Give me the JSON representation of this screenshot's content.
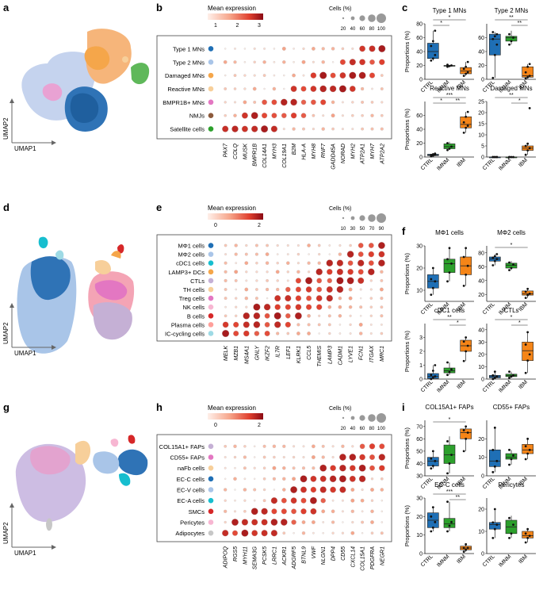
{
  "panel_letters": {
    "a": "a",
    "b": "b",
    "c": "c",
    "d": "d",
    "e": "e",
    "f": "f",
    "g": "g",
    "h": "h",
    "i": "i"
  },
  "umap": {
    "xlabel": "UMAP1",
    "ylabel": "UMAP2"
  },
  "dotplots": [
    {
      "id": "b",
      "legend_title": "Mean expression",
      "legend_ticks": [
        "1",
        "2",
        "3"
      ],
      "size_title": "Cells (%)",
      "size_ticks": [
        "20",
        "40",
        "60",
        "80",
        "100"
      ],
      "rows": [
        "Type 1 MNs",
        "Type 2 MNs",
        "Damaged MNs",
        "Reactive MNs",
        "BMPR1B+ MNs",
        "NMJs",
        "Satellite cells"
      ],
      "row_colors": [
        "#1f6fb5",
        "#a9c5e8",
        "#f5a64a",
        "#f7cf9a",
        "#e377c2",
        "#8c5a3c",
        "#2ca02c"
      ],
      "genes": [
        "PAX7",
        "COLQ",
        "MUSK",
        "BMPR1B",
        "COL14A1",
        "MYH3",
        "COL19A1",
        "B2M",
        "HLA-A",
        "MYH8",
        "RNF7",
        "GADD45A",
        "NORAD",
        "MYH2",
        "ATP2A1",
        "MYH7",
        "ATP2A2"
      ]
    },
    {
      "id": "e",
      "legend_title": "Mean expression",
      "legend_ticks": [
        "0",
        "2"
      ],
      "size_title": "Cells (%)",
      "size_ticks": [
        "10",
        "30",
        "50",
        "70",
        "90"
      ],
      "rows": [
        "MΦ1 cells",
        "MΦ2 cells",
        "cDC1 cells",
        "LAMP3+ DCs",
        "CTLs",
        "TH cells",
        "Treg cells",
        "NK cells",
        "B cells",
        "Plasma cells",
        "IC-cycling cells"
      ],
      "row_colors": [
        "#1f6fb5",
        "#a9c5e8",
        "#17becf",
        "#f5a64a",
        "#c5b0d5",
        "#f7cf9a",
        "#e377c2",
        "#f7b6d2",
        "#d62728",
        "#ff9f9a",
        "#9edae5"
      ],
      "genes": [
        "MELK",
        "MZB1",
        "MS4A1",
        "GNLY",
        "IKZF2",
        "IL7R",
        "LEF1",
        "KLRK1",
        "CCL5",
        "THEMIS",
        "LAMP3",
        "CADM1",
        "LYVE1",
        "FCN1",
        "ITGAX",
        "MRC1"
      ]
    },
    {
      "id": "h",
      "legend_title": "Mean expression",
      "legend_ticks": [
        "0",
        "2"
      ],
      "size_title": "Cells (%)",
      "size_ticks": [
        "20",
        "40",
        "60",
        "80",
        "100"
      ],
      "rows": [
        "COL15A1+ FAPs",
        "CD55+ FAPs",
        "naFb cells",
        "EC-C cells",
        "EC-V cells",
        "EC-A cells",
        "SMCs",
        "Pericytes",
        "Adipocytes"
      ],
      "row_colors": [
        "#c5b0d5",
        "#e377c2",
        "#f7cf9a",
        "#1f6fb5",
        "#a9c5e8",
        "#17becf",
        "#d62728",
        "#f7b6d2",
        "#c7c7c7"
      ],
      "genes": [
        "ADIPOQ",
        "RGS5",
        "MYH11",
        "SEMA3G",
        "PCSK5",
        "LRRC1",
        "ACKR1",
        "ADGRF5",
        "BTNL9",
        "VWF",
        "NLGN1",
        "DPP4",
        "CD55",
        "CXCL14",
        "COL15A1",
        "PDGFRA",
        "NEGR1"
      ]
    }
  ],
  "chart_data": [
    {
      "type": "box",
      "title": "Type 1 MNs",
      "ylabel": "Proportions (%)",
      "ylim": [
        0,
        80
      ],
      "yticks": [
        0,
        20,
        40,
        60,
        80
      ],
      "categories": [
        "CTRL",
        "IMNM",
        "IBM"
      ],
      "colors": [
        "#1f6fb5",
        "#2ca02c",
        "#f58518"
      ],
      "box": [
        [
          27,
          30,
          40,
          52,
          70
        ],
        [
          18,
          19,
          19.5,
          20,
          21
        ],
        [
          5,
          8,
          12,
          17,
          25
        ]
      ],
      "points": [
        [
          27,
          30,
          35,
          48,
          55,
          70
        ],
        [
          18,
          19,
          20,
          21
        ],
        [
          5,
          8,
          10,
          15,
          18,
          25
        ]
      ],
      "sig": [
        {
          "a": 0,
          "b": 1,
          "label": "*",
          "level": 0
        },
        {
          "a": 0,
          "b": 2,
          "label": "*",
          "level": 1
        }
      ]
    },
    {
      "type": "box",
      "title": "Type 2 MNs",
      "ylabel": "",
      "ylim": [
        0,
        80
      ],
      "yticks": [
        0,
        20,
        40,
        60
      ],
      "categories": [
        "CTRL",
        "IMNM",
        "IBM"
      ],
      "colors": [
        "#1f6fb5",
        "#2ca02c",
        "#f58518"
      ],
      "box": [
        [
          2,
          35,
          58,
          65,
          68
        ],
        [
          50,
          55,
          60,
          62,
          70
        ],
        [
          1,
          3,
          5,
          18,
          22
        ]
      ],
      "points": [
        [
          2,
          35,
          50,
          58,
          62,
          65,
          68
        ],
        [
          50,
          55,
          60,
          65
        ],
        [
          1,
          3,
          5,
          10,
          18,
          22
        ]
      ],
      "sig": [
        {
          "a": 1,
          "b": 2,
          "label": "**",
          "level": 0
        },
        {
          "a": 0,
          "b": 2,
          "label": "**",
          "level": 1
        }
      ]
    },
    {
      "type": "box",
      "title": "Reactive MNs",
      "ylabel": "Proportions (%)",
      "ylim": [
        0,
        80
      ],
      "yticks": [
        0,
        20,
        40,
        60
      ],
      "categories": [
        "CTRL",
        "IMNM",
        "IBM"
      ],
      "colors": [
        "#1f6fb5",
        "#2ca02c",
        "#f58518"
      ],
      "box": [
        [
          1,
          2,
          3,
          4,
          5
        ],
        [
          10,
          12,
          15,
          19,
          22
        ],
        [
          35,
          42,
          47,
          58,
          65
        ]
      ],
      "points": [
        [
          1,
          2,
          3,
          3,
          4,
          5
        ],
        [
          10,
          12,
          15,
          20
        ],
        [
          35,
          42,
          45,
          50,
          58,
          65
        ]
      ],
      "sig": [
        {
          "a": 0,
          "b": 1,
          "label": "*",
          "level": 0
        },
        {
          "a": 1,
          "b": 2,
          "label": "**",
          "level": 0
        },
        {
          "a": 0,
          "b": 2,
          "label": "***",
          "level": 1
        }
      ]
    },
    {
      "type": "box",
      "title": "Damaged MNs",
      "ylabel": "",
      "ylim": [
        0,
        25
      ],
      "yticks": [
        0,
        5,
        10,
        15,
        20,
        25
      ],
      "categories": [
        "CTRL",
        "IMNM",
        "IBM"
      ],
      "colors": [
        "#1f6fb5",
        "#2ca02c",
        "#f58518"
      ],
      "box": [
        [
          0,
          0,
          0,
          0,
          0
        ],
        [
          0,
          0,
          0,
          0,
          0
        ],
        [
          1,
          3,
          4,
          5,
          6
        ]
      ],
      "points": [
        [
          0,
          0,
          0,
          0,
          0,
          0
        ],
        [
          0,
          0,
          0,
          0
        ],
        [
          1,
          3,
          4,
          5,
          6,
          22
        ]
      ],
      "sig": [
        {
          "a": 1,
          "b": 2,
          "label": "*",
          "level": 0
        },
        {
          "a": 0,
          "b": 2,
          "label": "**",
          "level": 1
        }
      ]
    },
    {
      "type": "box",
      "title": "MΦ1 cells",
      "ylabel": "Proportions (%)",
      "ylim": [
        5,
        30
      ],
      "yticks": [
        10,
        20,
        30
      ],
      "categories": [
        "CTRL",
        "IMNM",
        "IBM"
      ],
      "colors": [
        "#1f6fb5",
        "#2ca02c",
        "#f58518"
      ],
      "box": [
        [
          8,
          11,
          14,
          17,
          20
        ],
        [
          14,
          18,
          22,
          24,
          29
        ],
        [
          12,
          17,
          21,
          25,
          29
        ]
      ],
      "points": [
        [
          8,
          11,
          14,
          15,
          20
        ],
        [
          14,
          18,
          22,
          24,
          29
        ],
        [
          12,
          17,
          21,
          25,
          29
        ]
      ],
      "sig": []
    },
    {
      "type": "box",
      "title": "MΦ2 cells",
      "ylabel": "",
      "ylim": [
        10,
        90
      ],
      "yticks": [
        20,
        40,
        60,
        80
      ],
      "categories": [
        "CTRL",
        "IMNM",
        "IBM"
      ],
      "colors": [
        "#1f6fb5",
        "#2ca02c",
        "#f58518"
      ],
      "box": [
        [
          62,
          68,
          71,
          74,
          78
        ],
        [
          55,
          58,
          62,
          65,
          68
        ],
        [
          15,
          19,
          21,
          25,
          28
        ]
      ],
      "points": [
        [
          62,
          68,
          71,
          73,
          75,
          78
        ],
        [
          55,
          58,
          63,
          66
        ],
        [
          15,
          19,
          21,
          24,
          28
        ]
      ],
      "sig": [
        {
          "a": 0,
          "b": 2,
          "label": "*",
          "level": 0
        }
      ]
    },
    {
      "type": "box",
      "title": "cDC1 cells",
      "ylabel": "Proportions (%)",
      "ylim": [
        0,
        4
      ],
      "yticks": [
        0,
        1,
        2,
        3
      ],
      "categories": [
        "CTRL",
        "IMNM",
        "IBM"
      ],
      "colors": [
        "#1f6fb5",
        "#2ca02c",
        "#f58518"
      ],
      "box": [
        [
          0,
          0.05,
          0.2,
          0.4,
          1
        ],
        [
          0.3,
          0.45,
          0.6,
          0.8,
          1.2
        ],
        [
          1.3,
          2,
          2.4,
          2.8,
          3
        ]
      ],
      "points": [
        [
          0,
          0.1,
          0.2,
          0.3,
          0.6,
          1
        ],
        [
          0.3,
          0.5,
          0.7,
          1.2
        ],
        [
          1.3,
          2,
          2.4,
          2.7,
          3
        ]
      ],
      "sig": [
        {
          "a": 1,
          "b": 2,
          "label": "*",
          "level": 0
        },
        {
          "a": 0,
          "b": 2,
          "label": "**",
          "level": 1
        }
      ]
    },
    {
      "type": "box",
      "title": "CTLs",
      "ylabel": "",
      "ylim": [
        0,
        45
      ],
      "yticks": [
        0,
        10,
        20,
        30,
        40
      ],
      "categories": [
        "CTRL",
        "IMNM",
        "IBM"
      ],
      "colors": [
        "#1f6fb5",
        "#2ca02c",
        "#f58518"
      ],
      "box": [
        [
          0,
          1,
          2,
          3,
          6
        ],
        [
          1,
          2,
          3,
          4,
          6
        ],
        [
          5,
          15,
          23,
          30,
          38
        ]
      ],
      "points": [
        [
          0,
          1,
          2,
          3,
          6
        ],
        [
          1,
          2,
          3,
          6
        ],
        [
          5,
          15,
          20,
          28,
          38
        ]
      ],
      "sig": [
        {
          "a": 1,
          "b": 2,
          "label": "*",
          "level": 0
        },
        {
          "a": 0,
          "b": 2,
          "label": "*",
          "level": 1
        }
      ]
    },
    {
      "type": "box",
      "title": "COL15A1+ FAPs",
      "ylabel": "Proportions (%)",
      "ylim": [
        30,
        75
      ],
      "yticks": [
        30,
        40,
        50,
        60,
        70
      ],
      "categories": [
        "CTRL",
        "IMNM",
        "IBM"
      ],
      "colors": [
        "#1f6fb5",
        "#2ca02c",
        "#f58518"
      ],
      "box": [
        [
          36,
          38,
          42,
          45,
          50
        ],
        [
          32,
          40,
          47,
          55,
          62
        ],
        [
          50,
          60,
          65,
          68,
          70
        ]
      ],
      "points": [
        [
          36,
          38,
          42,
          44,
          50
        ],
        [
          32,
          40,
          47,
          58
        ],
        [
          50,
          60,
          65,
          67,
          70
        ]
      ],
      "sig": [
        {
          "a": 0,
          "b": 2,
          "label": "*",
          "level": 0
        }
      ]
    },
    {
      "type": "box",
      "title": "CD55+ FAPs",
      "ylabel": "",
      "ylim": [
        0,
        30
      ],
      "yticks": [
        0,
        10,
        20
      ],
      "categories": [
        "CTRL",
        "IMNM",
        "IBM"
      ],
      "colors": [
        "#1f6fb5",
        "#2ca02c",
        "#f58518"
      ],
      "box": [
        [
          2,
          5,
          8,
          14,
          26
        ],
        [
          6,
          9,
          10,
          12,
          14
        ],
        [
          9,
          12,
          14,
          17,
          20
        ]
      ],
      "points": [
        [
          2,
          5,
          8,
          14,
          26
        ],
        [
          6,
          9,
          11,
          14
        ],
        [
          9,
          12,
          14,
          16,
          20
        ]
      ],
      "sig": []
    },
    {
      "type": "box",
      "title": "EC-C cells",
      "ylabel": "Proportions (%)",
      "ylim": [
        0,
        30
      ],
      "yticks": [
        0,
        10,
        20,
        30
      ],
      "categories": [
        "CTRL",
        "IMNM",
        "IBM"
      ],
      "colors": [
        "#1f6fb5",
        "#2ca02c",
        "#f58518"
      ],
      "box": [
        [
          12,
          14,
          18,
          22,
          25
        ],
        [
          12,
          14,
          16,
          19,
          28
        ],
        [
          1,
          2,
          3,
          4,
          5
        ]
      ],
      "points": [
        [
          12,
          14,
          17,
          20,
          25
        ],
        [
          12,
          15,
          17,
          28
        ],
        [
          1,
          2,
          3,
          3,
          5
        ]
      ],
      "sig": [
        {
          "a": 1,
          "b": 2,
          "label": "**",
          "level": 0
        },
        {
          "a": 0,
          "b": 2,
          "label": "***",
          "level": 1
        }
      ]
    },
    {
      "type": "box",
      "title": "Pericytes",
      "ylabel": "",
      "ylim": [
        0,
        25
      ],
      "yticks": [
        0,
        10,
        20
      ],
      "categories": [
        "CTRL",
        "IMNM",
        "IBM"
      ],
      "colors": [
        "#1f6fb5",
        "#2ca02c",
        "#f58518"
      ],
      "box": [
        [
          7,
          11,
          13,
          14,
          20
        ],
        [
          7,
          9,
          12,
          15,
          17
        ],
        [
          5,
          7,
          8,
          10,
          11
        ]
      ],
      "points": [
        [
          7,
          11,
          13,
          14,
          20
        ],
        [
          7,
          9,
          13,
          16
        ],
        [
          5,
          7,
          8,
          9,
          11
        ]
      ],
      "sig": []
    }
  ]
}
